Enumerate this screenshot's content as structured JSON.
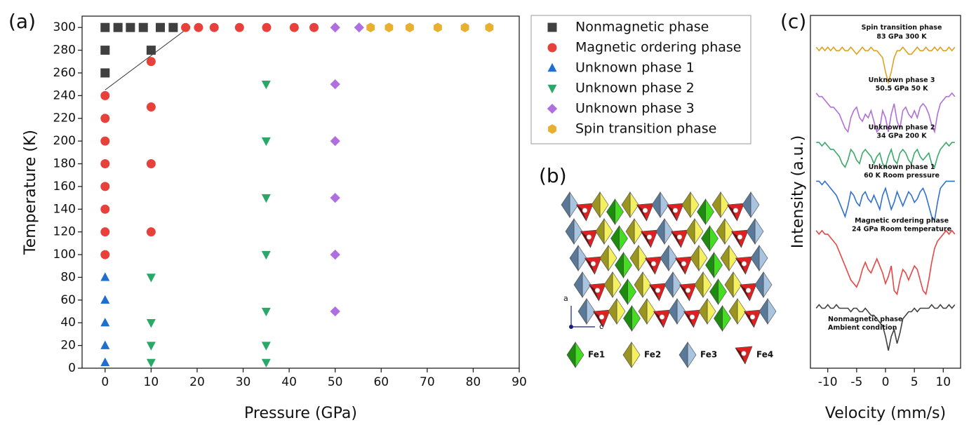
{
  "chart_data": [
    {
      "type": "scatter",
      "panel_label": "(a)",
      "xlabel": "Pressure (GPa)",
      "ylabel": "Temperature (K)",
      "xlim": [
        -5,
        90
      ],
      "ylim": [
        0,
        310
      ],
      "xticks": [
        0,
        10,
        20,
        30,
        40,
        50,
        60,
        70,
        80,
        90
      ],
      "yticks": [
        0,
        20,
        40,
        60,
        80,
        100,
        120,
        140,
        160,
        180,
        200,
        220,
        240,
        260,
        280,
        300
      ],
      "guide_line": {
        "x": [
          0,
          18.5
        ],
        "y": [
          245,
          301
        ]
      },
      "series": [
        {
          "name": "Nonmagnetic phase",
          "color": "#404040",
          "marker": "square",
          "x": [
            0,
            2.8,
            5.5,
            8.3,
            12,
            14.8,
            0,
            0,
            10
          ],
          "y": [
            300,
            300,
            300,
            300,
            300,
            300,
            280,
            260,
            280
          ]
        },
        {
          "name": "Magnetic ordering phase",
          "color": "#e8403a",
          "marker": "circle",
          "x": [
            17.5,
            20.3,
            23.7,
            29.2,
            35.1,
            41.1,
            45.4,
            10,
            10,
            10,
            10,
            0,
            0,
            0,
            0,
            0,
            0,
            0,
            0
          ],
          "y": [
            300,
            300,
            300,
            300,
            300,
            300,
            300,
            270,
            230,
            180,
            120,
            240,
            220,
            200,
            180,
            160,
            140,
            120,
            100
          ]
        },
        {
          "name": "Unknown phase 1",
          "color": "#1f6fcf",
          "marker": "triangle-up",
          "x": [
            0,
            0,
            0,
            0,
            0
          ],
          "y": [
            80,
            60,
            40,
            20,
            5
          ]
        },
        {
          "name": "Unknown phase 2",
          "color": "#2aa868",
          "marker": "triangle-down",
          "x": [
            10,
            10,
            10,
            10,
            35,
            35,
            35,
            35,
            35,
            35,
            35
          ],
          "y": [
            80,
            40,
            20,
            5,
            250,
            200,
            150,
            100,
            50,
            20,
            5
          ]
        },
        {
          "name": "Unknown phase 3",
          "color": "#b06fe0",
          "marker": "diamond",
          "x": [
            50,
            55.2,
            50,
            50,
            50,
            50,
            50
          ],
          "y": [
            300,
            300,
            250,
            200,
            150,
            100,
            50
          ]
        },
        {
          "name": "Spin transition phase",
          "color": "#e8b030",
          "marker": "hexagon",
          "x": [
            57.7,
            61.7,
            66.2,
            72.3,
            78.2,
            83.5
          ],
          "y": [
            300,
            300,
            300,
            300,
            300,
            300
          ]
        }
      ]
    },
    {
      "type": "line",
      "panel_label": "(c)",
      "xlabel": "Velocity (mm/s)",
      "ylabel": "Intensity (a.u.)",
      "xlim": [
        -13,
        13
      ],
      "ylim": [
        0,
        100
      ],
      "xticks": [
        -10,
        -5,
        0,
        5,
        10
      ],
      "x": [
        -12,
        -11.5,
        -11,
        -10.5,
        -10,
        -9.5,
        -9,
        -8.5,
        -8,
        -7.5,
        -7,
        -6.5,
        -6,
        -5.5,
        -5,
        -4.5,
        -4,
        -3.5,
        -3,
        -2.5,
        -2,
        -1.5,
        -1,
        -0.5,
        0,
        0.5,
        1,
        1.5,
        2,
        2.5,
        3,
        3.5,
        4,
        4.5,
        5,
        5.5,
        6,
        6.5,
        7,
        7.5,
        8,
        8.5,
        9,
        9.5,
        10,
        10.5,
        11,
        11.5,
        12
      ],
      "series": [
        {
          "label": [
            "Spin transition phase",
            "83 GPa 300 K"
          ],
          "color": "#e0a020",
          "label_color": "#e8902a",
          "values": [
            91,
            90,
            91,
            90,
            91,
            90,
            91,
            90,
            90,
            91,
            90,
            90,
            91,
            90,
            89,
            90,
            91,
            90,
            90,
            91,
            90,
            90,
            89,
            88,
            84,
            81,
            84,
            88,
            90,
            90,
            91,
            90,
            89,
            89,
            90,
            91,
            90,
            90,
            91,
            90,
            90,
            91,
            90,
            91,
            90,
            90,
            91,
            90,
            91
          ]
        },
        {
          "label": [
            "Unknown phase 3",
            "50.5 GPa 50 K"
          ],
          "color": "#b070d8",
          "label_color": "#a64fe0",
          "values": [
            78,
            77,
            77,
            76,
            75,
            74,
            74,
            73,
            72,
            70,
            68,
            67,
            71,
            73,
            74,
            71,
            70,
            72,
            71,
            73,
            70,
            67,
            68,
            73,
            71,
            67,
            72,
            75,
            70,
            68,
            73,
            74,
            72,
            71,
            73,
            71,
            74,
            75,
            74,
            72,
            69,
            67,
            72,
            75,
            76,
            77,
            77,
            78,
            77
          ]
        },
        {
          "label": [
            "Unknown phase 2",
            "34 GPa 200 K"
          ],
          "color": "#3aaa6a",
          "label_color": "#2a9a3a",
          "values": [
            64,
            64,
            63,
            64,
            63,
            62,
            62,
            61,
            60,
            58,
            57,
            59,
            62,
            61,
            59,
            58,
            61,
            62,
            61,
            60,
            58,
            60,
            61,
            58,
            57,
            60,
            62,
            59,
            58,
            61,
            62,
            61,
            59,
            58,
            61,
            62,
            60,
            59,
            60,
            61,
            58,
            57,
            60,
            62,
            63,
            64,
            63,
            64,
            64
          ]
        },
        {
          "label": [
            "Unknown phase 1",
            "60 K Room pressure"
          ],
          "color": "#2f6fd0",
          "label_color": "#1a3acc",
          "values": [
            53,
            53,
            52,
            53,
            52,
            51,
            50,
            49,
            47,
            45,
            43,
            46,
            50,
            49,
            47,
            46,
            49,
            50,
            48,
            47,
            49,
            47,
            45,
            49,
            51,
            48,
            45,
            47,
            50,
            48,
            46,
            48,
            50,
            49,
            47,
            48,
            50,
            51,
            49,
            46,
            43,
            42,
            47,
            51,
            52,
            53,
            53,
            53,
            53
          ]
        },
        {
          "label": [
            "Magnetic ordering phase",
            "24 GPa Room temperature"
          ],
          "color": "#e84545",
          "label_color": "#e02020",
          "values": [
            39,
            38,
            39,
            38,
            38,
            37,
            36,
            35,
            33,
            31,
            29,
            27,
            25,
            24,
            23,
            25,
            28,
            30,
            28,
            27,
            29,
            31,
            29,
            27,
            24,
            26,
            29,
            22,
            21,
            25,
            28,
            27,
            25,
            27,
            29,
            28,
            25,
            22,
            21,
            25,
            30,
            34,
            36,
            37,
            38,
            39,
            38,
            39,
            38
          ]
        },
        {
          "label": [
            "Nonmagnetic phase",
            "Ambient condition"
          ],
          "color": "#404040",
          "label_color": "#111111",
          "values": [
            17,
            18,
            17,
            17,
            18,
            17,
            17,
            18,
            17,
            17,
            17,
            17,
            16,
            17,
            17,
            16,
            16,
            17,
            16,
            15,
            15,
            14,
            13,
            12,
            9,
            5,
            9,
            11,
            7,
            10,
            14,
            15,
            16,
            16,
            17,
            16,
            17,
            17,
            17,
            17,
            18,
            17,
            17,
            18,
            17,
            17,
            18,
            17,
            18
          ]
        }
      ]
    }
  ],
  "structure": {
    "panel_label": "(b)",
    "axes": [
      "a",
      "c"
    ],
    "legend": [
      "Fe1",
      "Fe2",
      "Fe3",
      "Fe4"
    ]
  }
}
